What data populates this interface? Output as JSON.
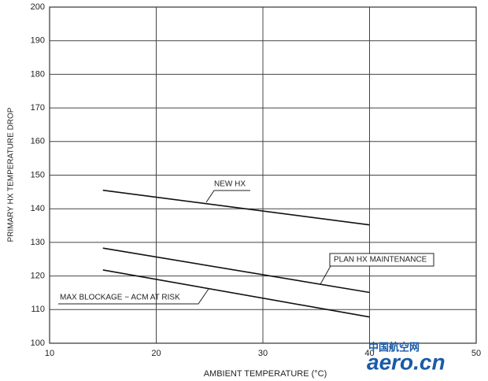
{
  "chart_data": {
    "type": "line",
    "xlabel": "AMBIENT TEMPERATURE (°C)",
    "ylabel": "PRIMARY HX TEMPERATURE DROP",
    "xlim": [
      10,
      50
    ],
    "xticks": [
      10,
      20,
      30,
      40,
      50
    ],
    "ylim": [
      100,
      200
    ],
    "yticks": [
      100,
      110,
      120,
      130,
      140,
      150,
      160,
      170,
      180,
      190,
      200
    ],
    "grid": true,
    "series": [
      {
        "name": "NEW HX",
        "color": "#111111",
        "x": [
          15,
          40
        ],
        "values": [
          145.5,
          135.2
        ]
      },
      {
        "name": "PLAN HX MAINTENANCE",
        "color": "#111111",
        "x": [
          15,
          40
        ],
        "values": [
          128.3,
          115.1
        ]
      },
      {
        "name": "MAX BLOCKAGE − ACM AT RISK",
        "color": "#111111",
        "x": [
          15,
          40
        ],
        "values": [
          121.8,
          107.8
        ]
      }
    ],
    "watermark": [
      "中国航空网",
      "aero.cn"
    ]
  }
}
